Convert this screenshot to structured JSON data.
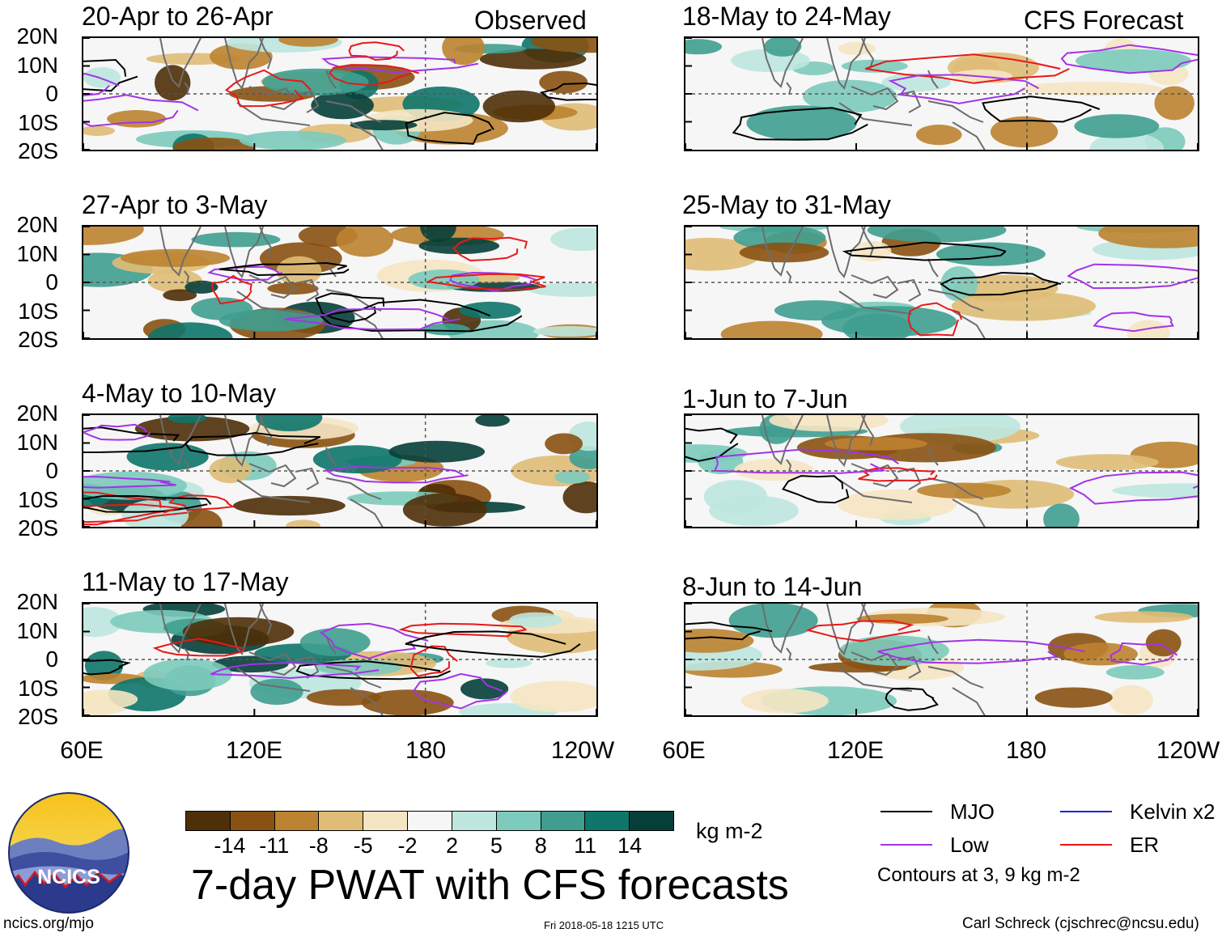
{
  "chart_data": {
    "type": "heatmap",
    "title": "7-day PWAT with CFS forecasts",
    "variable": "Precipitable water (PWAT) anomaly, 7-day mean",
    "units": "kg m-2",
    "x_axis": {
      "ticks": [
        "60E",
        "120E",
        "180",
        "120W"
      ],
      "range": [
        "60E",
        "120W"
      ]
    },
    "y_axis": {
      "ticks": [
        "20N",
        "10N",
        "0",
        "10S",
        "20S"
      ],
      "range": [
        "20S",
        "20N"
      ]
    },
    "colorbar": {
      "levels": [
        "-14",
        "-11",
        "-8",
        "-5",
        "-2",
        "2",
        "5",
        "8",
        "11",
        "14"
      ],
      "colors": [
        "#4f2f08",
        "#8a5212",
        "#bd8330",
        "#dfbd77",
        "#f5e6c3",
        "#f6f6f6",
        "#bde7df",
        "#7ccbbd",
        "#3f9e90",
        "#0e766a",
        "#063f39"
      ]
    },
    "legend": [
      {
        "label": "MJO",
        "color": "#000000"
      },
      {
        "label": "Kelvin x2",
        "color": "#1e22e0"
      },
      {
        "label": "Low",
        "color": "#a333e8"
      },
      {
        "label": "ER",
        "color": "#e81818"
      }
    ],
    "contour_note": "Contours at 3, 9 kg m-2",
    "column_labels": {
      "left": "Observed",
      "right": "CFS Forecast"
    },
    "panels": [
      {
        "period": "20-Apr to 26-Apr",
        "source": "Observed"
      },
      {
        "period": "27-Apr to 3-May",
        "source": "Observed"
      },
      {
        "period": "4-May to 10-May",
        "source": "Observed"
      },
      {
        "period": "11-May to 17-May",
        "source": "Observed"
      },
      {
        "period": "18-May to 24-May",
        "source": "CFS Forecast"
      },
      {
        "period": "25-May to 31-May",
        "source": "CFS Forecast"
      },
      {
        "period": "1-Jun to 7-Jun",
        "source": "CFS Forecast"
      },
      {
        "period": "8-Jun to 14-Jun",
        "source": "CFS Forecast"
      }
    ]
  },
  "footer": {
    "left": "ncics.org/mjo",
    "center": "Fri 2018-05-18 1215 UTC",
    "right": "Carl Schreck (cjschrec@ncsu.edu)"
  },
  "logo": {
    "text": "NCICS"
  }
}
